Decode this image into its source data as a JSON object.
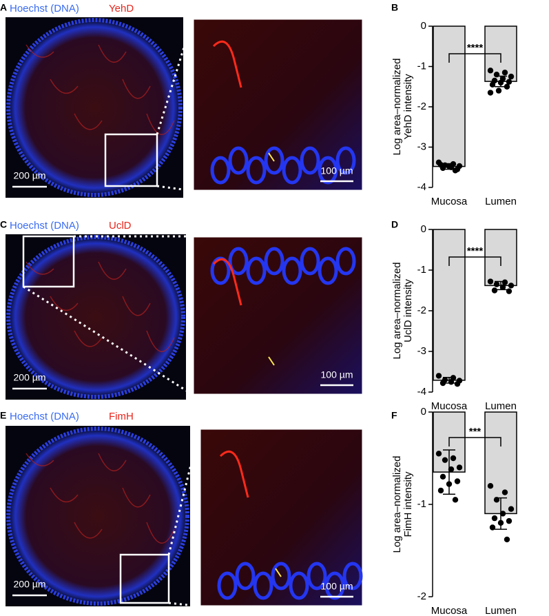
{
  "panels": [
    {
      "letter": "A",
      "stain": "Hoechst (DNA)",
      "target": "YehD",
      "scale_left": "200 µm",
      "scale_right": "100 µm"
    },
    {
      "letter": "C",
      "stain": "Hoechst (DNA)",
      "target": "UclD",
      "scale_left": "200 µm",
      "scale_right": "100 µm"
    },
    {
      "letter": "E",
      "stain": "Hoechst (DNA)",
      "target": "FimH",
      "scale_left": "200 µm",
      "scale_right": "100 µm"
    }
  ],
  "chart_data": [
    {
      "type": "bar",
      "panel_label": "B",
      "ylabel": [
        "Log area–normalized",
        "YehD intensity"
      ],
      "categories": [
        "Mucosa",
        "Lumen"
      ],
      "values": [
        -3.48,
        -1.37
      ],
      "errors": [
        0.07,
        0.13
      ],
      "points": [
        [
          -3.38,
          -3.42,
          -3.45,
          -3.47,
          -3.5,
          -3.52,
          -3.55,
          -3.48,
          -3.44,
          -3.58
        ],
        [
          -1.1,
          -1.15,
          -1.2,
          -1.25,
          -1.3,
          -1.35,
          -1.38,
          -1.4,
          -1.45,
          -1.5,
          -1.6,
          -1.65
        ]
      ],
      "color": "#d9d9d9",
      "ylim": [
        -4,
        0
      ],
      "yticks": [
        0,
        -1,
        -2,
        -3,
        -4
      ],
      "significance": "****"
    },
    {
      "type": "bar",
      "panel_label": "D",
      "ylabel": [
        "Log area–normalized",
        "UclD intensity"
      ],
      "categories": [
        "Mucosa",
        "Lumen"
      ],
      "values": [
        -3.71,
        -1.38
      ],
      "errors": [
        0.07,
        0.1
      ],
      "points": [
        [
          -3.6,
          -3.65,
          -3.7,
          -3.72,
          -3.75,
          -3.78,
          -3.8
        ],
        [
          -1.28,
          -1.3,
          -1.35,
          -1.38,
          -1.42,
          -1.5,
          -1.52
        ]
      ],
      "color": "#d9d9d9",
      "ylim": [
        -4,
        0
      ],
      "yticks": [
        0,
        -1,
        -2,
        -3,
        -4
      ],
      "significance": "****"
    },
    {
      "type": "bar",
      "panel_label": "F",
      "ylabel": [
        "Log area–normalized",
        "FimH intensity"
      ],
      "categories": [
        "Mucosa",
        "Lumen"
      ],
      "values": [
        -0.65,
        -1.1
      ],
      "errors": [
        0.24,
        0.17
      ],
      "points": [
        [
          -0.45,
          -0.5,
          -0.52,
          -0.6,
          -0.62,
          -0.7,
          -0.75,
          -0.78,
          -0.85,
          -0.95
        ],
        [
          -0.8,
          -0.87,
          -0.95,
          -1.05,
          -1.1,
          -1.15,
          -1.18,
          -1.2,
          -1.25,
          -1.38
        ]
      ],
      "color": "#d9d9d9",
      "ylim": [
        -2,
        0
      ],
      "yticks": [
        0,
        -1,
        -2
      ],
      "significance": "***"
    }
  ]
}
